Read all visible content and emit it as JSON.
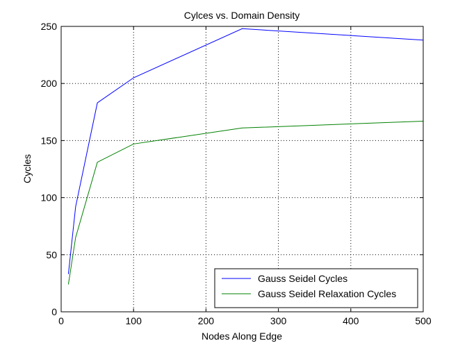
{
  "chart_data": {
    "type": "line",
    "title": "Cylces vs. Domain Density",
    "xlabel": "Nodes Along Edge",
    "ylabel": "Cycles",
    "xlim": [
      0,
      500
    ],
    "ylim": [
      0,
      250
    ],
    "xticks": [
      0,
      100,
      200,
      300,
      400,
      500
    ],
    "yticks": [
      0,
      50,
      100,
      150,
      200,
      250
    ],
    "grid": true,
    "legend_position": "bottom-right",
    "series": [
      {
        "name": "Gauss Seidel Cycles",
        "color": "#0000ff",
        "x": [
          10,
          20,
          50,
          100,
          250,
          500
        ],
        "y": [
          33,
          92,
          183,
          205,
          248,
          238
        ]
      },
      {
        "name": "Gauss Seidel Relaxation Cycles",
        "color": "#008000",
        "x": [
          10,
          20,
          50,
          100,
          250,
          500
        ],
        "y": [
          24,
          65,
          131,
          147,
          161,
          167
        ]
      }
    ]
  }
}
